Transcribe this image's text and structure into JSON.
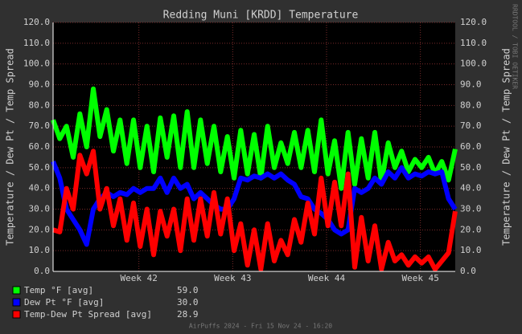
{
  "chart_data": {
    "type": "line",
    "title": "Redding Muni [KRDD] Temperature",
    "y_label": "Temperature / Dew Pt / Temp Spread",
    "y2_label": "Temperature / Dew Pt / Temp Spread",
    "side_note": "RRDTOOL / TOBI OETIKER",
    "footer": "AirPuffs 2024 - Fri 15 Nov 24 - 16:20",
    "x": [
      0,
      0.5,
      1,
      1.5,
      2,
      2.5,
      3,
      3.5,
      4,
      4.5,
      5,
      5.5,
      6,
      6.5,
      7,
      7.5,
      8,
      8.5,
      9,
      9.5,
      10,
      10.5,
      11,
      11.5,
      12,
      12.5,
      13,
      13.5,
      14,
      14.5,
      15,
      15.5,
      16,
      16.5,
      17,
      17.5,
      18,
      18.5,
      19,
      19.5,
      20,
      20.5,
      21,
      21.5,
      22,
      22.5,
      23,
      23.5,
      24,
      24.5,
      25,
      25.5,
      26,
      26.5,
      27,
      27.5,
      28,
      28.5,
      29,
      29.5,
      30
    ],
    "xlim": [
      0,
      30
    ],
    "xticks": [
      {
        "value": 6.4,
        "label": "Week 42"
      },
      {
        "value": 13.4,
        "label": "Week 43"
      },
      {
        "value": 20.4,
        "label": "Week 44"
      },
      {
        "value": 27.4,
        "label": "Week 45"
      }
    ],
    "ylim": [
      0,
      120
    ],
    "yticks": [
      {
        "value": 0,
        "label": "0.0"
      },
      {
        "value": 10,
        "label": "10.0"
      },
      {
        "value": 20,
        "label": "20.0"
      },
      {
        "value": 30,
        "label": "30.0"
      },
      {
        "value": 40,
        "label": "40.0"
      },
      {
        "value": 50,
        "label": "50.0"
      },
      {
        "value": 60,
        "label": "60.0"
      },
      {
        "value": 70,
        "label": "70.0"
      },
      {
        "value": 80,
        "label": "80.0"
      },
      {
        "value": 90,
        "label": "90.0"
      },
      {
        "value": 100,
        "label": "100.0"
      },
      {
        "value": 110,
        "label": "110.0"
      },
      {
        "value": 120,
        "label": "120.0"
      }
    ],
    "y2lim": [
      0,
      120
    ],
    "y2ticks": [
      {
        "value": 0,
        "label": "0.0"
      },
      {
        "value": 10,
        "label": "10.0"
      },
      {
        "value": 20,
        "label": "20.0"
      },
      {
        "value": 30,
        "label": "30.0"
      },
      {
        "value": 40,
        "label": "40.0"
      },
      {
        "value": 50,
        "label": "50.0"
      },
      {
        "value": 60,
        "label": "60.0"
      },
      {
        "value": 70,
        "label": "70.0"
      },
      {
        "value": 80,
        "label": "80.0"
      },
      {
        "value": 90,
        "label": "90.0"
      },
      {
        "value": 100,
        "label": "100.0"
      },
      {
        "value": 110,
        "label": "110.0"
      },
      {
        "value": 120,
        "label": "120.0"
      }
    ],
    "grid": true,
    "series": [
      {
        "name": "Temp °F [avg]",
        "color": "#00ff00",
        "legend_value": "59.0",
        "values": [
          73,
          64,
          70,
          55,
          76,
          60,
          88,
          65,
          78,
          58,
          73,
          52,
          73,
          50,
          70,
          48,
          74,
          55,
          75,
          50,
          77,
          50,
          73,
          52,
          70,
          48,
          65,
          45,
          68,
          47,
          66,
          45,
          70,
          50,
          62,
          52,
          67,
          50,
          68,
          48,
          73,
          47,
          63,
          40,
          67,
          42,
          64,
          45,
          67,
          43,
          62,
          50,
          58,
          48,
          54,
          50,
          55,
          47,
          53,
          44,
          59
        ]
      },
      {
        "name": "Dew Pt °F [avg]",
        "color": "#0000ff",
        "legend_value": "30.0",
        "values": [
          53,
          45,
          30,
          25,
          20,
          13,
          30,
          35,
          38,
          36,
          38,
          37,
          40,
          38,
          40,
          40,
          45,
          38,
          45,
          40,
          42,
          35,
          38,
          35,
          32,
          30,
          30,
          35,
          45,
          44,
          46,
          45,
          47,
          45,
          47,
          44,
          42,
          36,
          35,
          30,
          28,
          25,
          20,
          18,
          20,
          40,
          38,
          40,
          45,
          42,
          48,
          45,
          50,
          45,
          47,
          46,
          48,
          47,
          48,
          35,
          30
        ]
      },
      {
        "name": "Temp-Dew Pt Spread [avg]",
        "color": "#ff0000",
        "legend_value": "28.9",
        "values": [
          20,
          19,
          40,
          30,
          56,
          47,
          58,
          30,
          40,
          22,
          35,
          15,
          33,
          12,
          30,
          8,
          29,
          17,
          30,
          10,
          35,
          15,
          35,
          17,
          38,
          18,
          35,
          10,
          23,
          3,
          20,
          1,
          23,
          5,
          15,
          8,
          25,
          14,
          33,
          18,
          45,
          22,
          43,
          22,
          47,
          2,
          26,
          5,
          22,
          1,
          14,
          5,
          8,
          3,
          7,
          4,
          7,
          1,
          5,
          9,
          29
        ]
      }
    ]
  }
}
